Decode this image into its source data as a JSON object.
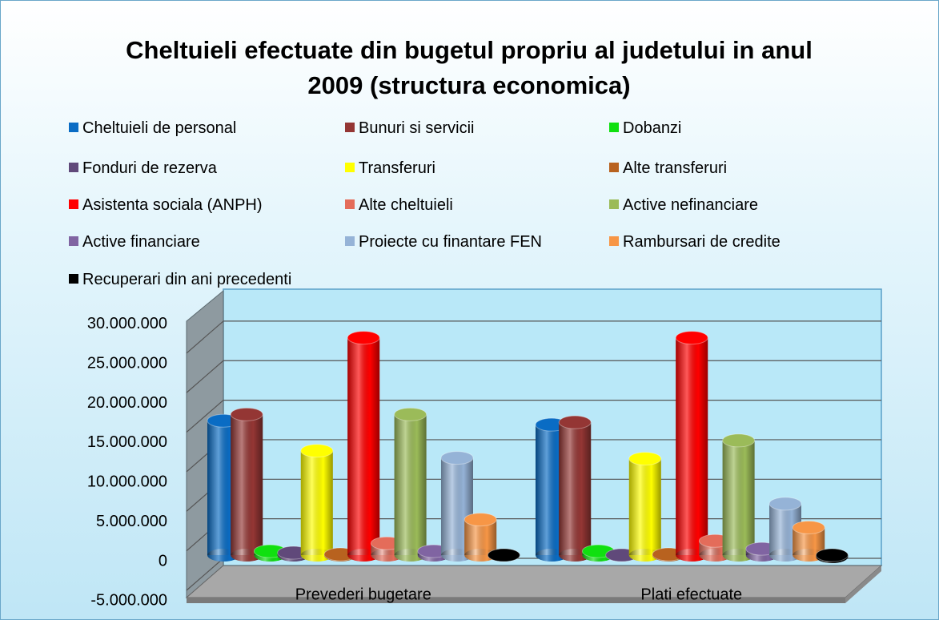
{
  "chart_data": {
    "type": "bar",
    "title": "Cheltuieli efectuate din bugetul propriu al judetului in anul 2009 (structura economica)",
    "categories": [
      "Prevederi bugetare",
      "Plati efectuate"
    ],
    "series": [
      {
        "name": "Cheltuieli de personal",
        "color": "#0a6cc4",
        "values": [
          17000000,
          16500000
        ]
      },
      {
        "name": "Bunuri si servicii",
        "color": "#943634",
        "values": [
          17800000,
          16800000
        ]
      },
      {
        "name": "Dobanzi",
        "color": "#10e010",
        "values": [
          500000,
          500000
        ]
      },
      {
        "name": "Fonduri de rezerva",
        "color": "#60497a",
        "values": [
          300000,
          0
        ]
      },
      {
        "name": "Transferuri",
        "color": "#ffff00",
        "values": [
          13200000,
          12200000
        ]
      },
      {
        "name": "Alte transferuri",
        "color": "#b8621f",
        "values": [
          100000,
          100000
        ]
      },
      {
        "name": "Asistenta sociala (ANPH)",
        "color": "#ff0000",
        "values": [
          27500000,
          27500000
        ]
      },
      {
        "name": "Alte cheltuieli",
        "color": "#e46c5a",
        "values": [
          1500000,
          1800000
        ]
      },
      {
        "name": "Active nefinanciare",
        "color": "#9bbb59",
        "values": [
          17800000,
          14500000
        ]
      },
      {
        "name": "Active financiare",
        "color": "#8064a2",
        "values": [
          500000,
          800000
        ]
      },
      {
        "name": "Proiecte cu finantare FEN",
        "color": "#95b3d7",
        "values": [
          12300000,
          6500000
        ]
      },
      {
        "name": "Rambursari de credite",
        "color": "#f79646",
        "values": [
          4500000,
          3500000
        ]
      },
      {
        "name": "Recuperari din ani precedenti",
        "color": "#000000",
        "values": [
          0,
          -200000
        ]
      }
    ],
    "ylim": [
      -5000000,
      30000000
    ],
    "yticks": [
      {
        "value": -5000000,
        "label": "-5.000.000"
      },
      {
        "value": 0,
        "label": "0"
      },
      {
        "value": 5000000,
        "label": "5.000.000"
      },
      {
        "value": 10000000,
        "label": "10.000.000"
      },
      {
        "value": 15000000,
        "label": "15.000.000"
      },
      {
        "value": 20000000,
        "label": "20.000.000"
      },
      {
        "value": 25000000,
        "label": "25.000.000"
      },
      {
        "value": 30000000,
        "label": "30.000.000"
      }
    ],
    "grid": true
  }
}
